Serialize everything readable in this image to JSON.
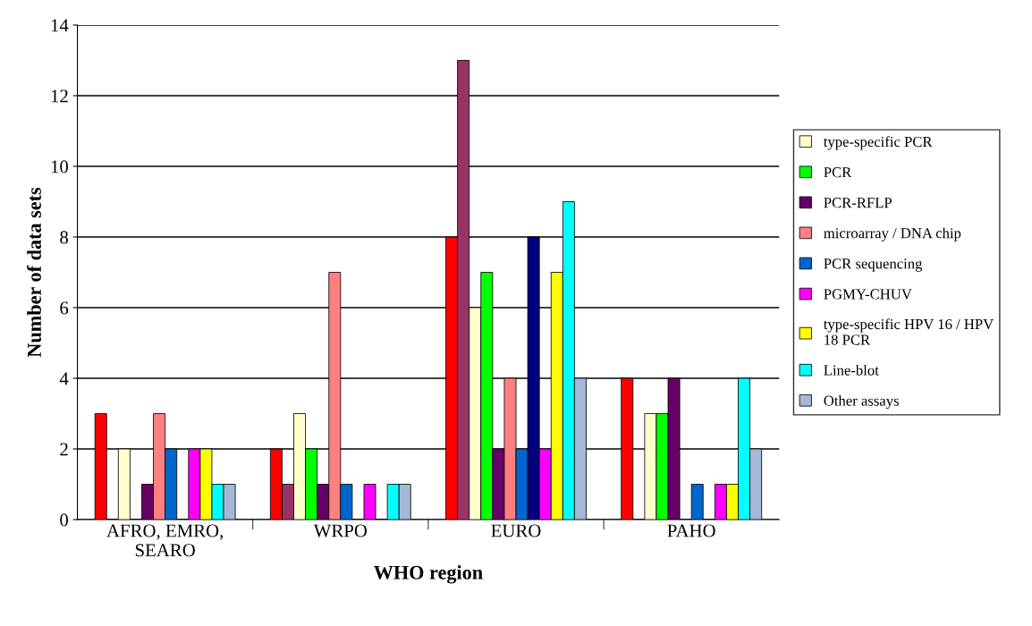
{
  "chart_data": {
    "type": "bar",
    "xlabel": "WHO region",
    "ylabel": "Number of data sets",
    "categories": [
      "AFRO, EMRO,\nSEARO",
      "WRPO",
      "EURO",
      "PAHO"
    ],
    "ylim": [
      0,
      14
    ],
    "yticks": [
      0,
      2,
      4,
      6,
      8,
      10,
      12,
      14
    ],
    "grid": "y",
    "legend": "right",
    "series": [
      {
        "color": "#ff0000",
        "values": [
          3,
          2,
          8,
          4
        ]
      },
      {
        "color": "#993366",
        "values": [
          0,
          1,
          13,
          0
        ]
      },
      {
        "name": "type-specific PCR",
        "color": "#ffffcc",
        "values": [
          2,
          3,
          6,
          3
        ]
      },
      {
        "name": "PCR",
        "color": "#00ff00",
        "values": [
          0,
          2,
          7,
          3
        ]
      },
      {
        "name": "PCR-RFLP",
        "color": "#660066",
        "values": [
          1,
          1,
          2,
          4
        ]
      },
      {
        "name": "microarray / DNA chip",
        "color": "#ff8080",
        "values": [
          3,
          7,
          4,
          0
        ]
      },
      {
        "name": "PCR sequencing",
        "color": "#0066cc",
        "values": [
          2,
          1,
          2,
          1
        ]
      },
      {
        "color": "#000080",
        "values": [
          0,
          0,
          8,
          0
        ]
      },
      {
        "name": "PGMY-CHUV",
        "color": "#ff00ff",
        "values": [
          2,
          1,
          2,
          1
        ]
      },
      {
        "name": "type-specific HPV 16 / HPV\n18 PCR",
        "color": "#ffff00",
        "values": [
          2,
          0,
          7,
          1
        ]
      },
      {
        "name": "Line-blot",
        "color": "#00ffff",
        "values": [
          1,
          1,
          9,
          4
        ]
      },
      {
        "name": "Other assays",
        "color": "#a6b8d8",
        "values": [
          1,
          1,
          4,
          2
        ]
      }
    ]
  }
}
